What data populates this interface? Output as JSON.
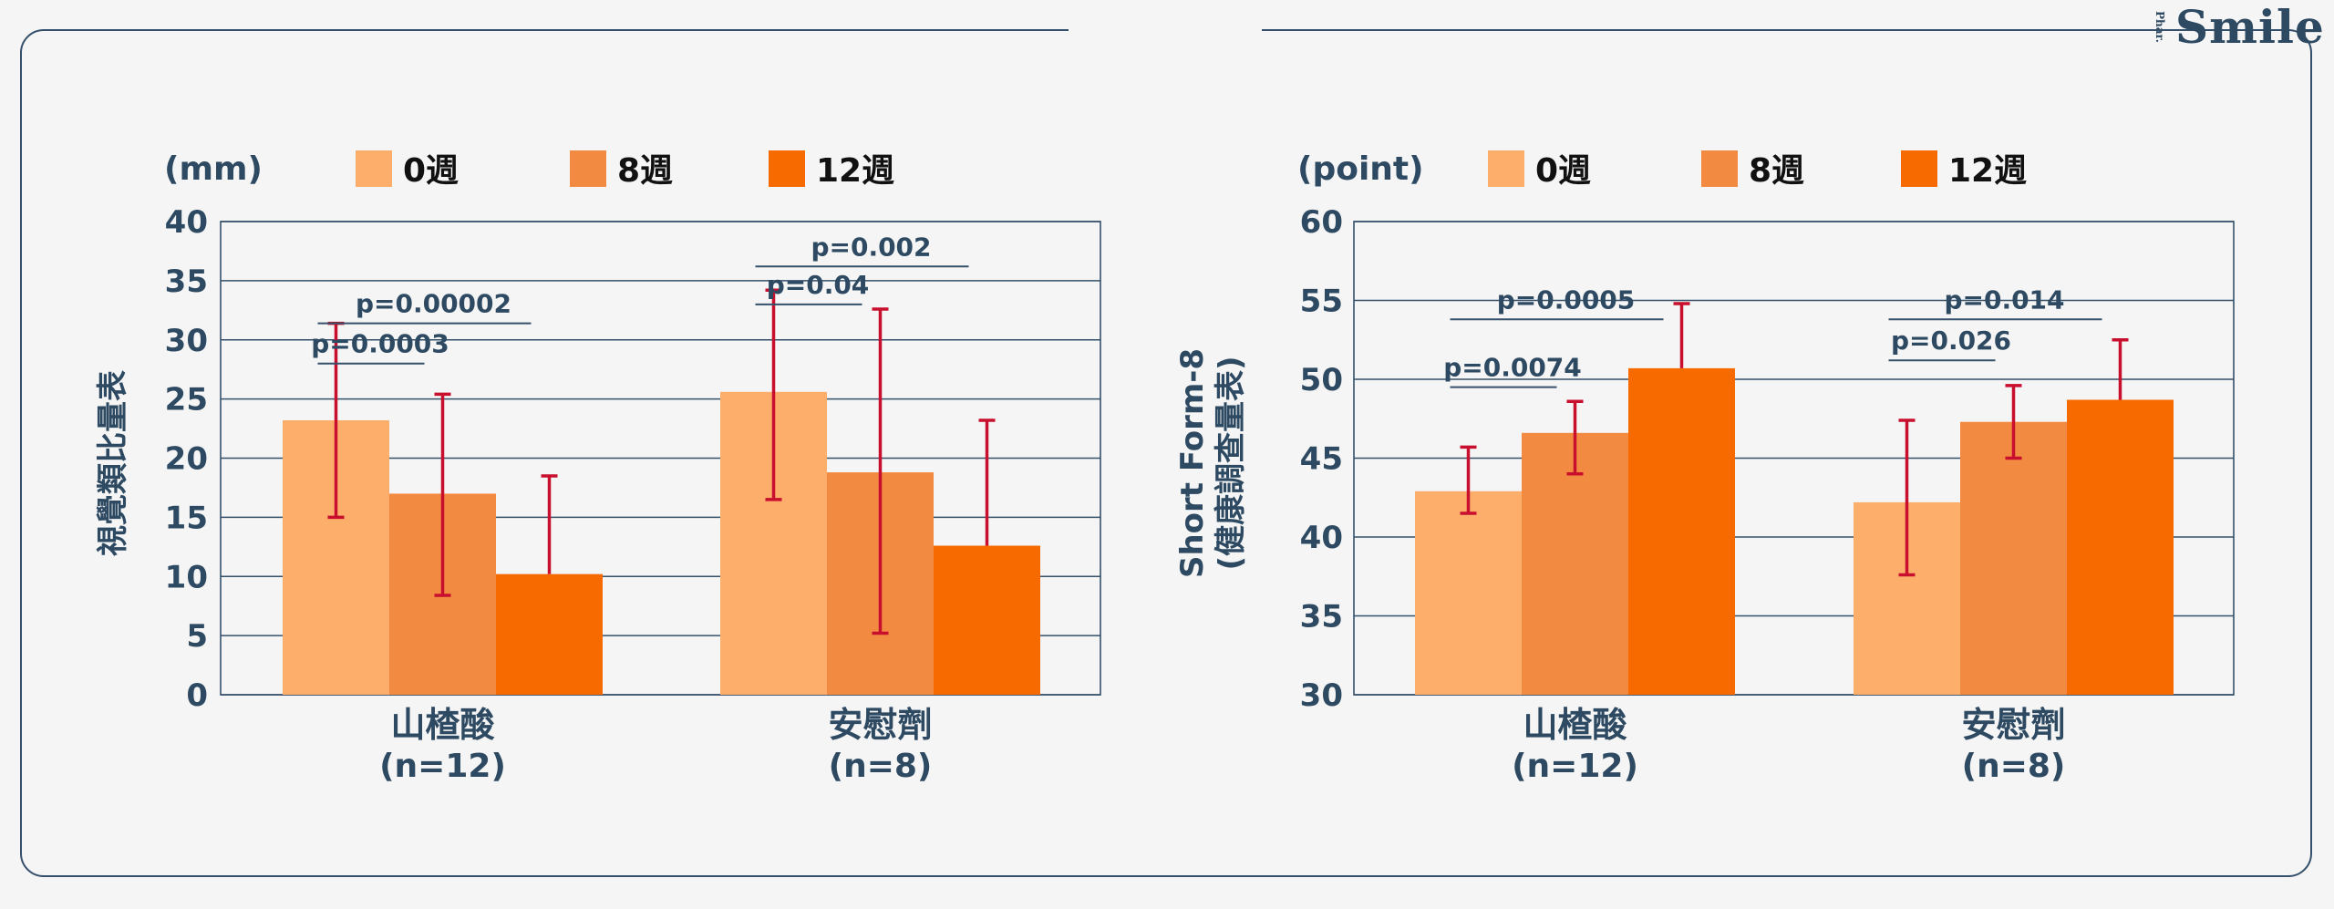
{
  "brand": {
    "small": "Phar.",
    "main": "Smile"
  },
  "colors": {
    "week0": "#fdae6b",
    "week8": "#f38a42",
    "week12": "#f66a00",
    "error": "#c8102e",
    "text": "#2e4a62",
    "grid": "#34506a"
  },
  "chart_data": [
    {
      "type": "bar",
      "unit": "(mm)",
      "ylabel": "視覺類比量表",
      "ylim": [
        0,
        40
      ],
      "yticks": [
        0,
        5,
        10,
        15,
        20,
        25,
        30,
        35,
        40
      ],
      "grid": true,
      "legend_position": "top",
      "groups": [
        {
          "name": "山楂酸",
          "n": "(n=12)"
        },
        {
          "name": "安慰劑",
          "n": "(n=8)"
        }
      ],
      "series": [
        {
          "name": "0週",
          "values": [
            23.2,
            25.6
          ],
          "err_low": [
            15.0,
            16.5
          ],
          "err_high": [
            31.4,
            34.2
          ]
        },
        {
          "name": "8週",
          "values": [
            17.0,
            18.8
          ],
          "err_low": [
            8.4,
            5.2
          ],
          "err_high": [
            25.4,
            32.6
          ]
        },
        {
          "name": "12週",
          "values": [
            10.2,
            12.6
          ],
          "err_low": [
            10.2,
            12.6
          ],
          "err_high": [
            18.5,
            23.2
          ]
        }
      ],
      "annotations": [
        {
          "label": "p=0.0003",
          "group": 0,
          "from": 0,
          "to": 1,
          "y": 28.0
        },
        {
          "label": "p=0.00002",
          "group": 0,
          "from": 0,
          "to": 2,
          "y": 31.4
        },
        {
          "label": "p=0.04",
          "group": 1,
          "from": 0,
          "to": 1,
          "y": 33.0
        },
        {
          "label": "p=0.002",
          "group": 1,
          "from": 0,
          "to": 2,
          "y": 36.2
        }
      ]
    },
    {
      "type": "bar",
      "unit": "(point)",
      "ylabel": "Short Form-8\n(健康調查量表)",
      "ylim": [
        30,
        60
      ],
      "yticks": [
        30,
        35,
        40,
        45,
        50,
        55,
        60
      ],
      "grid": true,
      "legend_position": "top",
      "groups": [
        {
          "name": "山楂酸",
          "n": "(n=12)"
        },
        {
          "name": "安慰劑",
          "n": "(n=8)"
        }
      ],
      "series": [
        {
          "name": "0週",
          "values": [
            42.9,
            42.2
          ],
          "err_low": [
            41.5,
            37.6
          ],
          "err_high": [
            45.7,
            47.4
          ]
        },
        {
          "name": "8週",
          "values": [
            46.6,
            47.3
          ],
          "err_low": [
            44.0,
            45.0
          ],
          "err_high": [
            48.6,
            49.6
          ]
        },
        {
          "name": "12週",
          "values": [
            50.7,
            48.7
          ],
          "err_low": [
            50.7,
            48.7
          ],
          "err_high": [
            54.8,
            52.5
          ]
        }
      ],
      "annotations": [
        {
          "label": "p=0.0074",
          "group": 0,
          "from": 0,
          "to": 1,
          "y": 49.5
        },
        {
          "label": "p=0.0005",
          "group": 0,
          "from": 0,
          "to": 2,
          "y": 53.8
        },
        {
          "label": "p=0.026",
          "group": 1,
          "from": 0,
          "to": 1,
          "y": 51.2
        },
        {
          "label": "p=0.014",
          "group": 1,
          "from": 0,
          "to": 2,
          "y": 53.8
        }
      ]
    }
  ]
}
